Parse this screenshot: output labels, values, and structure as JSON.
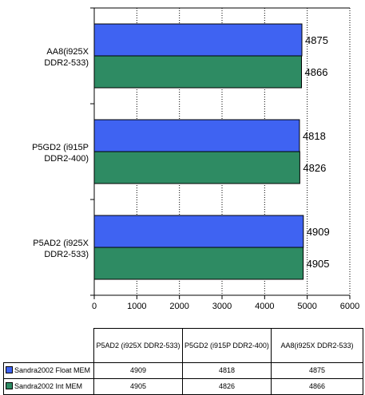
{
  "chart_data": {
    "type": "bar",
    "orientation": "horizontal",
    "categories": [
      "AA8(i925X DDR2-533)",
      "P5GD2 (i915P DDR2-400)",
      "P5AD2 (i925X DDR2-533)"
    ],
    "category_label_lines": [
      [
        "AA8(i925X",
        "DDR2-533)"
      ],
      [
        "P5GD2 (i915P",
        "DDR2-400)"
      ],
      [
        "P5AD2 (i925X",
        "DDR2-533)"
      ]
    ],
    "series": [
      {
        "name": "Sandra2002 Float MEM",
        "color": "#3f63f2",
        "values": [
          4875,
          4818,
          4909
        ]
      },
      {
        "name": "Sandra2002 Int MEM",
        "color": "#2e8b63",
        "values": [
          4866,
          4826,
          4905
        ]
      }
    ],
    "x_ticks": [
      "0",
      "1000",
      "2000",
      "3000",
      "4000",
      "5000",
      "6000"
    ],
    "xlim": [
      0,
      6000
    ],
    "grid": "vertical dotted"
  },
  "table": {
    "headers": [
      "P5AD2 (i925X DDR2-533)",
      "P5GD2 (i915P DDR2-400)",
      "AA8(i925X DDR2-533)"
    ],
    "rows": [
      {
        "name": "Sandra2002 Float MEM",
        "values": [
          "4909",
          "4818",
          "4875"
        ]
      },
      {
        "name": "Sandra2002 Int MEM",
        "values": [
          "4905",
          "4826",
          "4866"
        ]
      }
    ]
  }
}
